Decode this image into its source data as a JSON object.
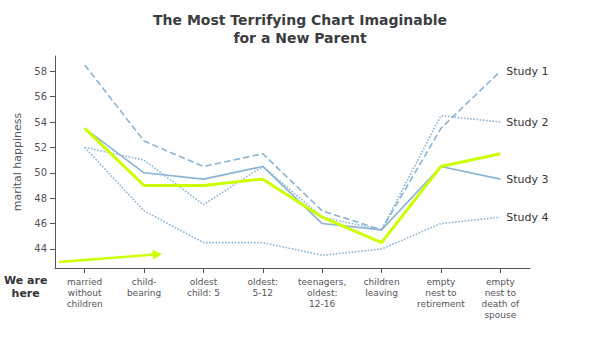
{
  "chart_data": {
    "type": "line",
    "title": "The Most Terrifying Chart Imaginable\nfor a New Parent",
    "ylabel": "marital happiness",
    "categories": [
      "married\nwithout\nchildren",
      "child-\nbearing",
      "oldest\nchild: 5",
      "oldest:\n5-12",
      "teenagers,\noldest:\n12-16",
      "children\nleaving",
      "empty\nnest to\nretirement",
      "empty\nnest to\ndeath of\nspouse"
    ],
    "series": [
      {
        "name": "Study 1",
        "color": "#8ab4d4",
        "line_style": "dashed",
        "values": [
          58.5,
          52.5,
          50.5,
          51.5,
          47.0,
          45.5,
          53.5,
          58.0
        ]
      },
      {
        "name": "Study 2",
        "color": "#8ab4d4",
        "line_style": "dotted",
        "values": [
          52.0,
          51.0,
          47.5,
          50.5,
          46.5,
          45.5,
          54.5,
          54.0
        ]
      },
      {
        "name": "Study 3",
        "color": "#8ab4d4",
        "line_style": "solid",
        "values": [
          53.5,
          50.0,
          49.5,
          50.5,
          46.0,
          45.5,
          50.5,
          49.5
        ]
      },
      {
        "name": "Study 4",
        "color": "#8ab4d4",
        "line_style": "dotted",
        "values": [
          52.0,
          47.0,
          44.5,
          44.5,
          43.5,
          44.0,
          46.0,
          46.5
        ]
      },
      {
        "color": "#ccff00",
        "line_style": "solid",
        "values": [
          53.5,
          49.0,
          49.0,
          49.5,
          46.5,
          44.5,
          50.5,
          51.5
        ]
      }
    ],
    "ylim": [
      42.5,
      59.2
    ],
    "yticks": [
      44,
      46,
      48,
      50,
      52,
      54,
      56,
      58
    ],
    "grid": false,
    "annotations": [
      {
        "text": "We are\nhere",
        "category": "child-\nbearing",
        "color": "#ccff00"
      }
    ]
  }
}
